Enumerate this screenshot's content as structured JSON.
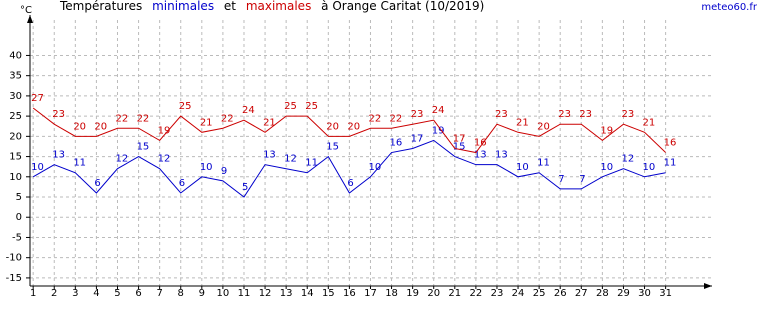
{
  "chart_data": {
    "type": "line",
    "title_parts": [
      "Températures",
      "et",
      "à Orange Caritat (10/2019)"
    ],
    "y_label": "°C",
    "source": "meteo60.fr",
    "x": [
      1,
      2,
      3,
      4,
      5,
      6,
      7,
      8,
      9,
      10,
      11,
      12,
      13,
      14,
      15,
      16,
      17,
      18,
      19,
      20,
      21,
      22,
      23,
      24,
      25,
      26,
      27,
      28,
      29,
      30,
      31
    ],
    "series": [
      {
        "name": "minimales",
        "color": "#0000cc",
        "values": [
          10,
          13,
          11,
          6,
          12,
          15,
          12,
          6,
          10,
          9,
          5,
          13,
          12,
          11,
          15,
          6,
          10,
          16,
          17,
          19,
          15,
          13,
          13,
          10,
          11,
          7,
          7,
          10,
          12,
          10,
          11
        ]
      },
      {
        "name": "maximales",
        "color": "#cc0000",
        "values": [
          27,
          23,
          20,
          20,
          22,
          22,
          19,
          25,
          21,
          22,
          24,
          21,
          25,
          25,
          20,
          20,
          22,
          22,
          23,
          24,
          17,
          16,
          23,
          21,
          20,
          23,
          23,
          19,
          23,
          21,
          16
        ]
      }
    ],
    "xlim": [
      0.85,
      33.2
    ],
    "xticks": [
      1,
      2,
      3,
      4,
      5,
      6,
      7,
      8,
      9,
      10,
      11,
      12,
      13,
      14,
      15,
      16,
      17,
      18,
      19,
      20,
      21,
      22,
      23,
      24,
      25,
      26,
      27,
      28,
      29,
      30,
      31
    ],
    "ylim": [
      -17,
      50
    ],
    "yticks": [
      -15,
      -10,
      -5,
      0,
      5,
      10,
      15,
      20,
      25,
      30,
      35,
      40
    ],
    "grid": true
  }
}
